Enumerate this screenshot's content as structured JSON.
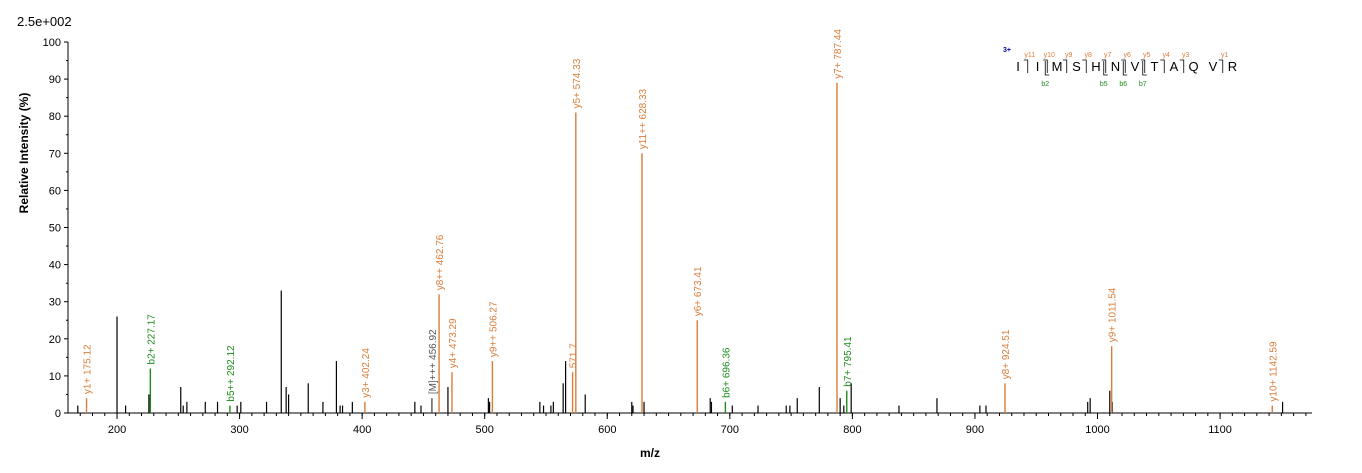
{
  "chart_data": {
    "type": "bar",
    "title": "",
    "scale_label": "2.5e+002",
    "xlabel": "m/z",
    "ylabel": "Relative   Intensity (%)",
    "xlim": [
      160,
      1175
    ],
    "ylim": [
      0,
      100
    ],
    "x_ticks": [
      200,
      300,
      400,
      500,
      600,
      700,
      800,
      900,
      1000,
      1100
    ],
    "y_ticks": [
      0,
      10,
      20,
      30,
      40,
      50,
      60,
      70,
      80,
      90,
      100
    ],
    "colors": {
      "y_ion": "#d97d3a",
      "b_ion": "#1e8c1e",
      "unmatched": "#000000",
      "other": "#555555",
      "charge": "#0000aa"
    },
    "annotated_peaks": [
      {
        "mz": 175.12,
        "intensity": 4,
        "label": "y1+ 175.12",
        "ion": "y"
      },
      {
        "mz": 227.17,
        "intensity": 12,
        "label": "b2+ 227.17",
        "ion": "b"
      },
      {
        "mz": 292.12,
        "intensity": 2,
        "label": "b5++ 292.12",
        "ion": "b"
      },
      {
        "mz": 402.24,
        "intensity": 3,
        "label": "y3+ 402.24",
        "ion": "y"
      },
      {
        "mz": 456.92,
        "intensity": 4,
        "label": "[M]+++ 456.92",
        "ion": "other"
      },
      {
        "mz": 462.76,
        "intensity": 32,
        "label": "y8++ 462.76",
        "ion": "y"
      },
      {
        "mz": 473.29,
        "intensity": 11,
        "label": "y4+ 473.29",
        "ion": "y"
      },
      {
        "mz": 506.27,
        "intensity": 14,
        "label": "y9++ 506.27",
        "ion": "y"
      },
      {
        "mz": 571.7,
        "intensity": 11,
        "label": "571.7",
        "ion": "y"
      },
      {
        "mz": 574.33,
        "intensity": 81,
        "label": "y5+ 574.33",
        "ion": "y"
      },
      {
        "mz": 628.33,
        "intensity": 70,
        "label": "y11++ 628.33",
        "ion": "y"
      },
      {
        "mz": 673.41,
        "intensity": 25,
        "label": "y6+ 673.41",
        "ion": "y"
      },
      {
        "mz": 696.36,
        "intensity": 3,
        "label": "b6+ 696.36",
        "ion": "b"
      },
      {
        "mz": 787.44,
        "intensity": 89,
        "label": "y7+ 787.44",
        "ion": "y"
      },
      {
        "mz": 795.41,
        "intensity": 6,
        "label": "b7+ 795.41",
        "ion": "b"
      },
      {
        "mz": 924.51,
        "intensity": 8,
        "label": "y8+ 924.51",
        "ion": "y"
      },
      {
        "mz": 1011.54,
        "intensity": 18,
        "label": "y9+ 1011.54",
        "ion": "y"
      },
      {
        "mz": 1142.59,
        "intensity": 2,
        "label": "y10+ 1142.59",
        "ion": "y"
      }
    ],
    "unlabeled_peaks": [
      {
        "mz": 168,
        "intensity": 2
      },
      {
        "mz": 200,
        "intensity": 26
      },
      {
        "mz": 207,
        "intensity": 2
      },
      {
        "mz": 226,
        "intensity": 5
      },
      {
        "mz": 252,
        "intensity": 7
      },
      {
        "mz": 254,
        "intensity": 2
      },
      {
        "mz": 257,
        "intensity": 3
      },
      {
        "mz": 272,
        "intensity": 3
      },
      {
        "mz": 282,
        "intensity": 3
      },
      {
        "mz": 298,
        "intensity": 2
      },
      {
        "mz": 301,
        "intensity": 3
      },
      {
        "mz": 322,
        "intensity": 3
      },
      {
        "mz": 334,
        "intensity": 33
      },
      {
        "mz": 338,
        "intensity": 7
      },
      {
        "mz": 340,
        "intensity": 5
      },
      {
        "mz": 356,
        "intensity": 8
      },
      {
        "mz": 368,
        "intensity": 3
      },
      {
        "mz": 379,
        "intensity": 14
      },
      {
        "mz": 382,
        "intensity": 2
      },
      {
        "mz": 384,
        "intensity": 2
      },
      {
        "mz": 392,
        "intensity": 3
      },
      {
        "mz": 443,
        "intensity": 3
      },
      {
        "mz": 448,
        "intensity": 2
      },
      {
        "mz": 470,
        "intensity": 7
      },
      {
        "mz": 503,
        "intensity": 4
      },
      {
        "mz": 504,
        "intensity": 3
      },
      {
        "mz": 545,
        "intensity": 3
      },
      {
        "mz": 548,
        "intensity": 2
      },
      {
        "mz": 554,
        "intensity": 2
      },
      {
        "mz": 556,
        "intensity": 3
      },
      {
        "mz": 564,
        "intensity": 8
      },
      {
        "mz": 566,
        "intensity": 14
      },
      {
        "mz": 582,
        "intensity": 5
      },
      {
        "mz": 620,
        "intensity": 3
      },
      {
        "mz": 621,
        "intensity": 2
      },
      {
        "mz": 630,
        "intensity": 3
      },
      {
        "mz": 684,
        "intensity": 4
      },
      {
        "mz": 685,
        "intensity": 3
      },
      {
        "mz": 702,
        "intensity": 2
      },
      {
        "mz": 723,
        "intensity": 2
      },
      {
        "mz": 746,
        "intensity": 2
      },
      {
        "mz": 749,
        "intensity": 2
      },
      {
        "mz": 755,
        "intensity": 4
      },
      {
        "mz": 773,
        "intensity": 7
      },
      {
        "mz": 790,
        "intensity": 4
      },
      {
        "mz": 793,
        "intensity": 2
      },
      {
        "mz": 799,
        "intensity": 8
      },
      {
        "mz": 838,
        "intensity": 2
      },
      {
        "mz": 869,
        "intensity": 4
      },
      {
        "mz": 904,
        "intensity": 2
      },
      {
        "mz": 909,
        "intensity": 2
      },
      {
        "mz": 992,
        "intensity": 3
      },
      {
        "mz": 994,
        "intensity": 4
      },
      {
        "mz": 1010,
        "intensity": 6
      },
      {
        "mz": 1012,
        "intensity": 3
      },
      {
        "mz": 1151,
        "intensity": 3
      }
    ],
    "sequence": {
      "charge": "3+",
      "residues": [
        "I",
        "I",
        "M",
        "S",
        "H",
        "N",
        "V",
        "T",
        "A",
        "Q",
        "V",
        "R"
      ],
      "y_ions": [
        {
          "label": "y11",
          "after": 1
        },
        {
          "label": "y10",
          "after": 2
        },
        {
          "label": "y9",
          "after": 3
        },
        {
          "label": "y8",
          "after": 4
        },
        {
          "label": "y7",
          "after": 5
        },
        {
          "label": "y6",
          "after": 6
        },
        {
          "label": "y5",
          "after": 7
        },
        {
          "label": "y4",
          "after": 8
        },
        {
          "label": "y3",
          "after": 9
        },
        {
          "label": "y1",
          "after": 11
        }
      ],
      "b_ions": [
        {
          "label": "b2",
          "after": 2
        },
        {
          "label": "b5",
          "after": 5
        },
        {
          "label": "b6",
          "after": 6
        },
        {
          "label": "b7",
          "after": 7
        }
      ]
    }
  }
}
